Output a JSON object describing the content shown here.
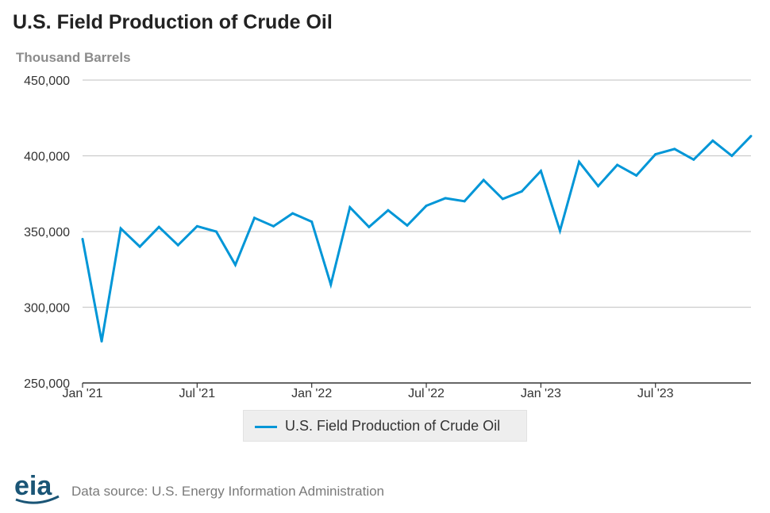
{
  "header": {
    "title": "U.S. Field Production of Crude Oil",
    "unit_label": "Thousand Barrels"
  },
  "chart_data": {
    "type": "line",
    "title": "U.S. Field Production of Crude Oil",
    "ylabel": "Thousand Barrels",
    "xlabel": "",
    "ylim": [
      250000,
      450000
    ],
    "yticks": [
      250000,
      300000,
      350000,
      400000,
      450000
    ],
    "ytick_labels": [
      "250,000",
      "300,000",
      "350,000",
      "400,000",
      "450,000"
    ],
    "xticks": [
      {
        "index": 0,
        "label": "Jan '21"
      },
      {
        "index": 6,
        "label": "Jul '21"
      },
      {
        "index": 12,
        "label": "Jan '22"
      },
      {
        "index": 18,
        "label": "Jul '22"
      },
      {
        "index": 24,
        "label": "Jan '23"
      },
      {
        "index": 30,
        "label": "Jul '23"
      }
    ],
    "grid": true,
    "legend_position": "bottom-center",
    "series": [
      {
        "name": "U.S. Field Production of Crude Oil",
        "color": "#0096d7",
        "values": [
          345000,
          277500,
          352000,
          340000,
          353000,
          341000,
          353500,
          350000,
          328000,
          359000,
          353500,
          362000,
          356500,
          315000,
          366000,
          353000,
          364000,
          354000,
          367000,
          372000,
          370000,
          384000,
          371500,
          376500,
          390000,
          350500,
          396000,
          380000,
          394000,
          387000,
          401000,
          404500,
          397500,
          410000,
          400000,
          413000
        ]
      }
    ]
  },
  "legend": {
    "label": "U.S. Field Production of Crude Oil",
    "color": "#0096d7"
  },
  "footer": {
    "logo_text": "eia",
    "source": "Data source: U.S. Energy Information Administration"
  },
  "colors": {
    "line": "#0096d7",
    "grid": "#cccccc",
    "axis": "#333333",
    "logo": "#1a5576"
  }
}
